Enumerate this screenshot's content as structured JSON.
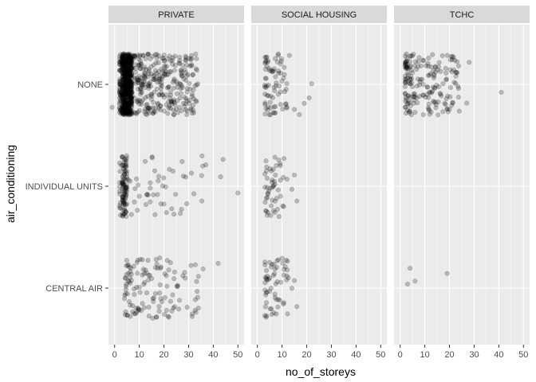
{
  "chart_data": {
    "type": "scatter",
    "title": "",
    "xlabel": "no_of_storeys",
    "ylabel": "air_conditioning",
    "xlim": [
      -2.5,
      52.5
    ],
    "x_ticks": [
      0,
      10,
      20,
      30,
      40,
      50
    ],
    "x_minor_ticks": [
      5,
      15,
      25,
      35,
      45
    ],
    "y_categories": [
      "CENTRAL AIR",
      "INDIVIDUAL UNITS",
      "NONE"
    ],
    "jitter_height": 0.3,
    "grid": true,
    "point_color": "#000000",
    "point_alpha": 0.22,
    "panel_bg": "#EBEBEB",
    "strip_bg": "#D9D9D9",
    "facets": [
      {
        "label": "PRIVATE",
        "groups": [
          {
            "category": "NONE",
            "x_min": 2,
            "x_max": 34,
            "count": 900,
            "dense_band": [
              3,
              7
            ],
            "extra_x": [
              -1
            ]
          },
          {
            "category": "INDIVIDUAL UNITS",
            "x_min": 2,
            "x_max": 37,
            "count": 150,
            "dense_band": [
              3,
              5
            ],
            "extra_x": [
              43,
              44,
              50
            ]
          },
          {
            "category": "CENTRAL AIR",
            "x_min": 4,
            "x_max": 36,
            "count": 130,
            "extra_x": [
              42
            ]
          }
        ]
      },
      {
        "label": "SOCIAL HOUSING",
        "groups": [
          {
            "category": "NONE",
            "x_min": 3,
            "x_max": 12,
            "count": 75,
            "extra_x": [
              13,
              15,
              17,
              19,
              21,
              22
            ]
          },
          {
            "category": "INDIVIDUAL UNITS",
            "x_min": 3,
            "x_max": 11,
            "count": 50,
            "extra_x": [
              12,
              14,
              15,
              16
            ]
          },
          {
            "category": "CENTRAL AIR",
            "x_min": 3,
            "x_max": 13,
            "count": 60,
            "extra_x": [
              14,
              15,
              16
            ]
          }
        ]
      },
      {
        "label": "TCHC",
        "groups": [
          {
            "category": "NONE",
            "x_min": 2,
            "x_max": 24,
            "count": 190,
            "extra_x": [
              27,
              28,
              41
            ]
          },
          {
            "category": "INDIVIDUAL UNITS",
            "x_min": 0,
            "x_max": 0,
            "count": 0
          },
          {
            "category": "CENTRAL AIR",
            "x_min": 3,
            "x_max": 20,
            "count": 0,
            "extra_x": [
              3,
              4,
              6,
              19
            ]
          }
        ]
      }
    ]
  }
}
